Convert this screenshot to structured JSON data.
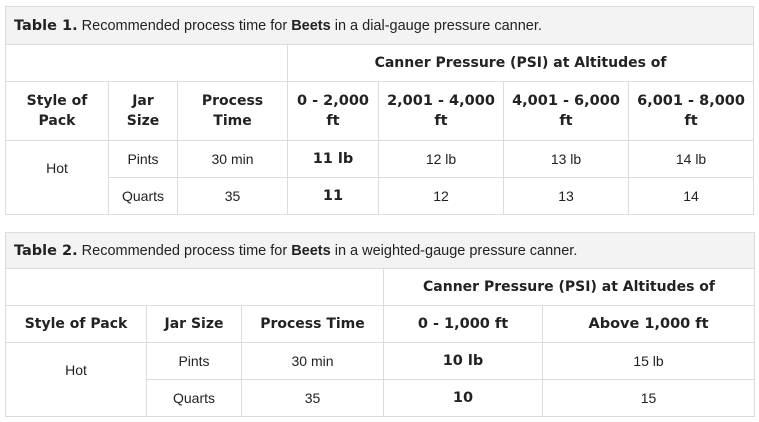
{
  "table1": {
    "caption": {
      "label": "Table 1.",
      "text_before": " Recommended process time for ",
      "bold_word": "Beets",
      "text_after": " in a dial-gauge pressure canner."
    },
    "group_header": "Canner Pressure (PSI) at Altitudes of",
    "headers": {
      "style_line1": "Style of",
      "style_line2": "Pack",
      "jar_line1": "Jar",
      "jar_line2": "Size",
      "process_line1": "Process",
      "process_line2": "Time",
      "alt1_line1": "0 - 2,000",
      "alt1_line2": "ft",
      "alt2_line1": "2,001 - 4,000",
      "alt2_line2": "ft",
      "alt3_line1": "4,001 - 6,000",
      "alt3_line2": "ft",
      "alt4_line1": "6,001 - 8,000",
      "alt4_line2": "ft"
    },
    "style": "Hot",
    "rows": [
      {
        "jar": "Pints",
        "time": "30 min",
        "alt1": "11 lb",
        "alt2": "12 lb",
        "alt3": "13 lb",
        "alt4": "14 lb"
      },
      {
        "jar": "Quarts",
        "time": "35",
        "alt1": "11",
        "alt2": "12",
        "alt3": "13",
        "alt4": "14"
      }
    ]
  },
  "table2": {
    "caption": {
      "label": "Table 2.",
      "text_before": " Recommended process time for ",
      "bold_word": "Beets",
      "text_after": " in a weighted-gauge pressure canner."
    },
    "group_header": "Canner Pressure (PSI) at Altitudes of",
    "headers": {
      "style": "Style of Pack",
      "jar": "Jar Size",
      "process": "Process Time",
      "alt1": "0 - 1,000 ft",
      "alt2": "Above 1,000 ft"
    },
    "style": "Hot",
    "rows": [
      {
        "jar": "Pints",
        "time": "30 min",
        "alt1": "10 lb",
        "alt2": "15 lb"
      },
      {
        "jar": "Quarts",
        "time": "35",
        "alt1": "10",
        "alt2": "15"
      }
    ]
  }
}
